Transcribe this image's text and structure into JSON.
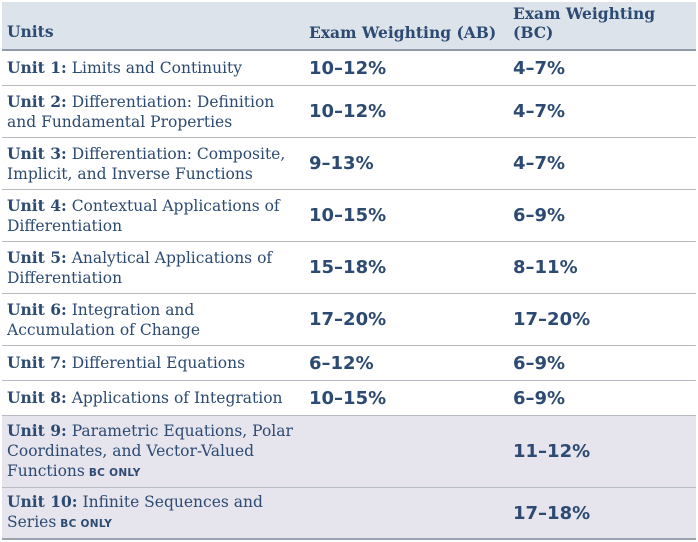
{
  "headers": {
    "units": "Units",
    "ab": "Exam Weighting (AB)",
    "bc": "Exam Weighting (BC)"
  },
  "rows": [
    {
      "num": "Unit 1:",
      "title": "Limits and Continuity",
      "tag": "",
      "ab": "10–12%",
      "bc": "4–7%"
    },
    {
      "num": "Unit 2:",
      "title": "Differentiation: Definition and Fundamental Properties",
      "tag": "",
      "ab": "10–12%",
      "bc": "4–7%"
    },
    {
      "num": "Unit 3:",
      "title": "Differentiation: Composite, Implicit, and Inverse Functions",
      "tag": "",
      "ab": "9–13%",
      "bc": "4–7%"
    },
    {
      "num": "Unit 4:",
      "title": "Contextual Applications of Differentiation",
      "tag": "",
      "ab": "10–15%",
      "bc": "6–9%"
    },
    {
      "num": "Unit 5:",
      "title": "Analytical Applications of Differentiation",
      "tag": "",
      "ab": "15–18%",
      "bc": "8–11%"
    },
    {
      "num": "Unit 6:",
      "title": "Integration and Accumulation of Change",
      "tag": "",
      "ab": "17–20%",
      "bc": "17–20%"
    },
    {
      "num": "Unit 7:",
      "title": "Differential Equations",
      "tag": "",
      "ab": "6–12%",
      "bc": "6–9%"
    },
    {
      "num": "Unit 8:",
      "title": "Applications of Integration",
      "tag": "",
      "ab": "10–15%",
      "bc": "6–9%"
    },
    {
      "num": "Unit 9:",
      "title": "Parametric Equations, Polar Coordinates, and Vector-Valued Functions",
      "tag": "BC ONLY",
      "ab": "",
      "bc": "11–12%"
    },
    {
      "num": "Unit 10:",
      "title": "Infinite Sequences and Series",
      "tag": "BC ONLY",
      "ab": "",
      "bc": "17–18%"
    }
  ]
}
